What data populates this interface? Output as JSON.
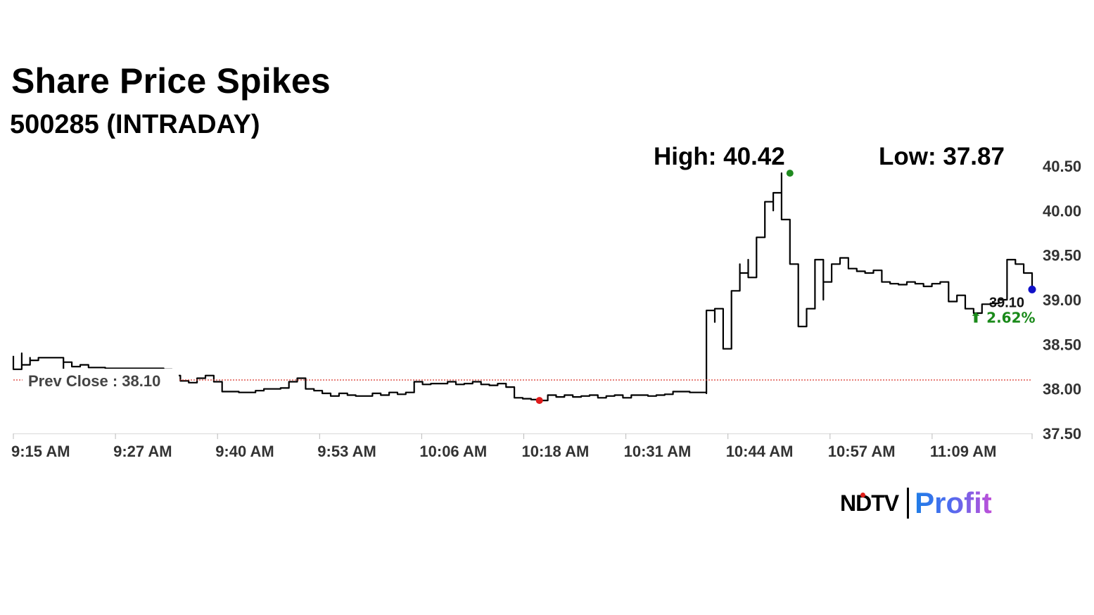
{
  "header": {
    "title": "Share Price Spikes",
    "subtitle": "500285 (INTRADAY)",
    "high_label": "High: 40.42",
    "low_label": "Low: 37.87"
  },
  "logo": {
    "brand": "NDTV",
    "product": "Profit",
    "colors": {
      "ndtv": "#000000",
      "dot": "#e0201b",
      "profit_start": "#1f7de6",
      "profit_end": "#c04fd8"
    }
  },
  "chart_data": {
    "type": "line",
    "title": "Share Price Spikes",
    "subtitle": "500285 (INTRADAY)",
    "x_ticks": [
      "9:15 AM",
      "9:27 AM",
      "9:40 AM",
      "9:53 AM",
      "10:06 AM",
      "10:18 AM",
      "10:31 AM",
      "10:44 AM",
      "10:57 AM",
      "11:09 AM"
    ],
    "x_range_minutes": [
      555,
      677
    ],
    "y_ticks": [
      37.5,
      38.0,
      38.5,
      39.0,
      39.5,
      40.0,
      40.5
    ],
    "y_tick_labels": [
      "37.50",
      "38.00",
      "38.50",
      "39.00",
      "39.50",
      "40.00",
      "40.50"
    ],
    "ylim": [
      37.5,
      40.5
    ],
    "y_axis_position": "right",
    "grid": false,
    "line_color": "#000000",
    "prev_close": {
      "value": 38.1,
      "label": "Prev Close : 38.10",
      "color": "#d9342b"
    },
    "high": {
      "value": 40.42,
      "time": "10:48 AM",
      "color": "#1f8a1f"
    },
    "low": {
      "value": 37.87,
      "time": "10:18 AM",
      "color": "#e01b1b"
    },
    "last": {
      "value": 39.1,
      "label": "39.10",
      "change_label": "⬆ 2.62%",
      "change_color": "#1a8a1a",
      "marker_color": "#1010c8"
    },
    "series": [
      {
        "x": [
          "09:15",
          "09:15",
          "09:16",
          "09:16",
          "09:17",
          "09:17",
          "09:18",
          "09:19",
          "09:20",
          "09:21",
          "09:21",
          "09:22",
          "09:22",
          "09:23",
          "09:24",
          "09:25",
          "09:26",
          "09:27",
          "09:28",
          "09:29",
          "09:30",
          "09:31",
          "09:32",
          "09:33",
          "09:34",
          "09:35",
          "09:36",
          "09:37",
          "09:38",
          "09:39",
          "09:40",
          "09:41",
          "09:42",
          "09:43",
          "09:44",
          "09:45",
          "09:46",
          "09:47",
          "09:48",
          "09:49",
          "09:50",
          "09:51",
          "09:52",
          "09:53",
          "09:54",
          "09:55",
          "09:56",
          "09:57",
          "09:58",
          "09:59",
          "10:00",
          "10:01",
          "10:02",
          "10:03",
          "10:04",
          "10:05",
          "10:06",
          "10:07",
          "10:08",
          "10:09",
          "10:10",
          "10:11",
          "10:12",
          "10:13",
          "10:14",
          "10:15",
          "10:16",
          "10:17",
          "10:18",
          "10:19",
          "10:20",
          "10:21",
          "10:22",
          "10:23",
          "10:24",
          "10:25",
          "10:26",
          "10:27",
          "10:28",
          "10:29",
          "10:30",
          "10:31",
          "10:32",
          "10:33",
          "10:34",
          "10:35",
          "10:36",
          "10:37",
          "10:38",
          "10:38",
          "10:39",
          "10:39",
          "10:40",
          "10:40",
          "10:41",
          "10:41",
          "10:42",
          "10:42",
          "10:43",
          "10:43",
          "10:44",
          "10:44",
          "10:45",
          "10:45",
          "10:46",
          "10:46",
          "10:47",
          "10:47",
          "10:48",
          "10:48",
          "10:49",
          "10:49",
          "10:50",
          "10:50",
          "10:51",
          "10:51",
          "10:52",
          "10:52",
          "10:53",
          "10:53",
          "10:54",
          "10:55",
          "10:56",
          "10:57",
          "10:58",
          "10:59",
          "11:00",
          "11:01",
          "11:02",
          "11:03",
          "11:04",
          "11:05",
          "11:06",
          "11:07",
          "11:08",
          "11:09",
          "11:10",
          "11:11",
          "11:12",
          "11:13",
          "11:14",
          "11:14",
          "11:15",
          "11:16",
          "11:17"
        ],
        "values": [
          38.37,
          38.22,
          38.4,
          38.27,
          38.35,
          38.32,
          38.35,
          38.35,
          38.35,
          38.2,
          38.3,
          38.27,
          38.25,
          38.27,
          38.24,
          38.24,
          38.23,
          38.23,
          38.23,
          38.23,
          38.23,
          38.23,
          38.23,
          38.22,
          38.15,
          38.09,
          38.07,
          38.12,
          38.15,
          38.08,
          37.97,
          37.97,
          37.96,
          37.96,
          37.98,
          38.0,
          38.0,
          38.01,
          38.08,
          38.12,
          38.0,
          37.98,
          37.95,
          37.92,
          37.95,
          37.93,
          37.92,
          37.92,
          37.95,
          37.93,
          37.96,
          37.94,
          37.96,
          38.08,
          38.05,
          38.06,
          38.06,
          38.08,
          38.05,
          38.06,
          38.08,
          38.05,
          38.04,
          38.06,
          38.02,
          37.9,
          37.89,
          37.88,
          37.87,
          37.93,
          37.91,
          37.93,
          37.91,
          37.92,
          37.93,
          37.9,
          37.92,
          37.93,
          37.9,
          37.93,
          37.93,
          37.92,
          37.93,
          37.94,
          37.97,
          37.97,
          37.96,
          37.96,
          37.95,
          38.88,
          38.75,
          38.9,
          38.6,
          38.45,
          38.85,
          39.1,
          39.4,
          39.3,
          39.45,
          39.25,
          39.6,
          39.7,
          39.95,
          40.1,
          40.0,
          40.2,
          40.42,
          39.9,
          39.7,
          39.4,
          39.1,
          38.7,
          38.8,
          38.9,
          39.3,
          39.45,
          39.0,
          39.2,
          39.35,
          39.4,
          39.47,
          39.35,
          39.32,
          39.3,
          39.33,
          39.2,
          39.18,
          39.17,
          39.2,
          39.18,
          39.15,
          39.18,
          39.2,
          38.98,
          39.05,
          38.9,
          38.85,
          38.95,
          38.96,
          39.0,
          39.05,
          39.45,
          39.4,
          39.3,
          39.1
        ]
      }
    ]
  }
}
